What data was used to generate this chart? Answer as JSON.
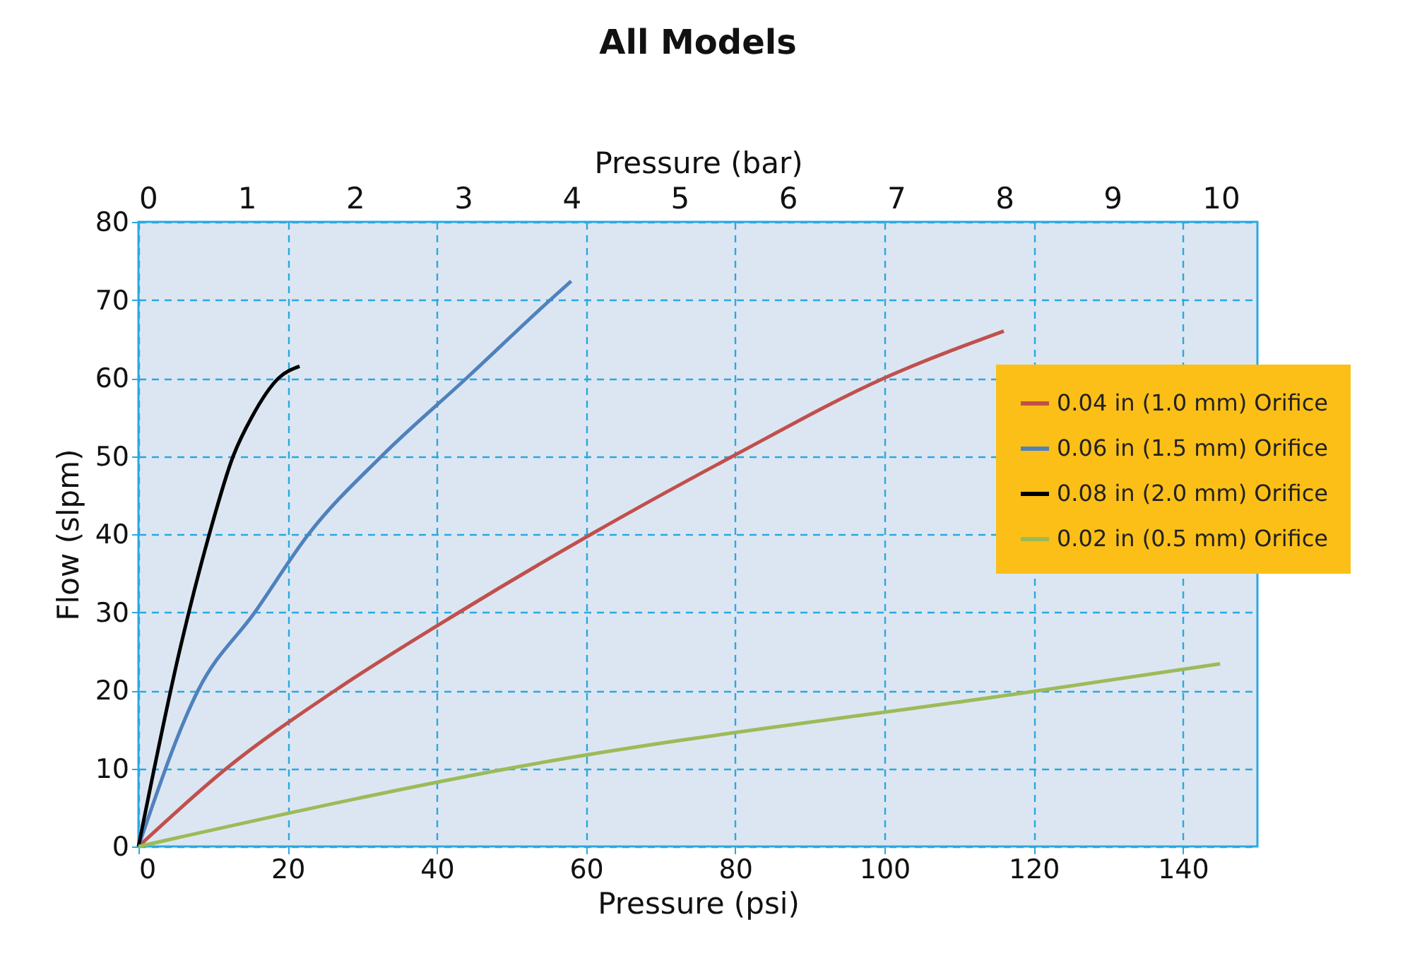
{
  "chart_data": {
    "type": "line",
    "title": "All Models",
    "xlabel": "Pressure (psi)",
    "ylabel": "Flow (slpm)",
    "x2label": "Pressure (bar)",
    "xlim": [
      0,
      150
    ],
    "xticks": [
      0,
      20,
      40,
      60,
      80,
      100,
      120,
      140
    ],
    "ylim": [
      0,
      80
    ],
    "yticks": [
      0,
      10,
      20,
      30,
      40,
      50,
      60,
      70,
      80
    ],
    "x2lim": [
      0,
      10.34
    ],
    "x2ticks": [
      0,
      1,
      2,
      3,
      4,
      5,
      6,
      7,
      8,
      9,
      10
    ],
    "grid": true,
    "legend": "right",
    "marker": "none",
    "line_style": "solid",
    "series": [
      {
        "name": "0.04 in (1.0 mm) Orifice",
        "color": "#c0504d",
        "x": [
          0,
          11.8,
          26.4,
          43,
          60.7,
          79.7,
          100,
          116
        ],
        "values": [
          0,
          10,
          20,
          30,
          40,
          50,
          60,
          66
        ]
      },
      {
        "name": "0.06 in (1.5 mm) Orifice",
        "color": "#4f81bd",
        "x": [
          0,
          8,
          15.6,
          22.8,
          32.6,
          44,
          55.2,
          58
        ],
        "values": [
          0,
          20,
          30,
          40,
          50,
          60,
          70,
          72.4
        ]
      },
      {
        "name": "0.08 in (2.0 mm) Orifice",
        "color": "#000000",
        "x": [
          0,
          5.5,
          9.5,
          12.7,
          15.2,
          18.8,
          21.6
        ],
        "values": [
          0,
          25,
          40,
          50,
          55,
          60,
          61.5
        ]
      },
      {
        "name": "0.02 in (0.5 mm) Orifice",
        "color": "#9bbb59",
        "x": [
          0,
          49.7,
          121,
          145
        ],
        "values": [
          0,
          10,
          20,
          23.4
        ]
      }
    ]
  }
}
